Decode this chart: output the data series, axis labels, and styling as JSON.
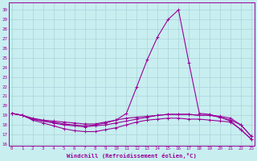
{
  "xlabel": "Windchill (Refroidissement éolien,°C)",
  "bg_color": "#c8eef0",
  "line_color": "#990099",
  "grid_color": "#b0d8dc",
  "x_ticks": [
    0,
    1,
    2,
    3,
    4,
    5,
    6,
    7,
    8,
    9,
    10,
    11,
    12,
    13,
    14,
    15,
    16,
    17,
    18,
    19,
    20,
    21,
    22,
    23
  ],
  "y_ticks": [
    16,
    17,
    18,
    19,
    20,
    21,
    22,
    23,
    24,
    25,
    26,
    27,
    28,
    29,
    30
  ],
  "ylim": [
    15.8,
    30.8
  ],
  "xlim": [
    -0.3,
    23.3
  ],
  "series": {
    "line1": [
      19.2,
      19.0,
      18.5,
      18.2,
      17.9,
      17.6,
      17.4,
      17.3,
      17.3,
      17.5,
      17.7,
      18.0,
      18.3,
      18.5,
      18.6,
      18.7,
      18.7,
      18.6,
      18.6,
      18.5,
      18.4,
      18.3,
      17.5,
      16.5
    ],
    "line2": [
      19.2,
      19.0,
      18.6,
      18.4,
      18.2,
      18.0,
      17.9,
      17.8,
      17.9,
      18.0,
      18.2,
      18.4,
      18.6,
      18.8,
      19.0,
      19.1,
      19.1,
      19.1,
      19.0,
      19.0,
      18.9,
      18.7,
      18.0,
      16.8
    ],
    "line3": [
      19.2,
      19.0,
      18.6,
      18.4,
      18.3,
      18.1,
      18.0,
      17.9,
      18.0,
      18.2,
      18.5,
      19.2,
      22.0,
      24.8,
      27.2,
      29.0,
      30.0,
      24.5,
      19.2,
      19.1,
      18.8,
      18.4,
      17.5,
      16.5
    ],
    "line4": [
      19.2,
      19.0,
      18.7,
      18.5,
      18.4,
      18.3,
      18.2,
      18.1,
      18.1,
      18.3,
      18.5,
      18.7,
      18.8,
      18.9,
      19.0,
      19.1,
      19.1,
      19.1,
      19.0,
      19.0,
      18.8,
      18.5,
      18.0,
      16.8
    ]
  }
}
